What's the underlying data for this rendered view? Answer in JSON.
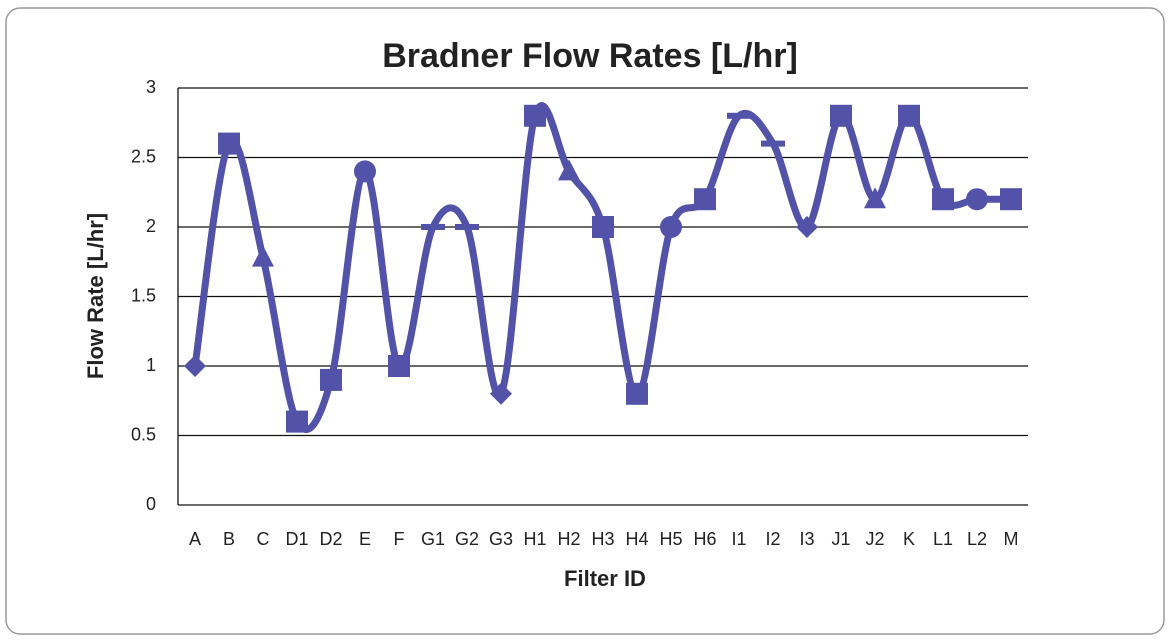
{
  "chart_data": {
    "type": "line",
    "title": "Bradner Flow Rates [L/hr]",
    "x_label": "Filter ID",
    "y_label": "Flow Rate [L/hr]",
    "categories": [
      "A",
      "B",
      "C",
      "D1",
      "D2",
      "E",
      "F",
      "G1",
      "G2",
      "G3",
      "H1",
      "H2",
      "H3",
      "H4",
      "H5",
      "H6",
      "I1",
      "I2",
      "I3",
      "J1",
      "J2",
      "K",
      "L1",
      "L2",
      "M"
    ],
    "series": [
      {
        "name": "Flow Rate",
        "color": "#5252a8",
        "values": [
          1.0,
          2.6,
          1.78,
          0.6,
          0.9,
          2.4,
          1.0,
          2.0,
          2.0,
          0.8,
          2.8,
          2.4,
          2.0,
          0.8,
          2.0,
          2.2,
          2.8,
          2.6,
          2.0,
          2.8,
          2.2,
          2.8,
          2.2,
          2.2,
          2.2
        ],
        "markers": [
          "diamond",
          "square",
          "triangle",
          "square",
          "square",
          "circle",
          "square",
          "dash",
          "dash",
          "diamond",
          "square",
          "triangle",
          "square",
          "square",
          "circle",
          "square",
          "dash",
          "dash",
          "diamond",
          "square",
          "triangle",
          "square",
          "square",
          "circle",
          "square"
        ]
      }
    ],
    "ylim": [
      0,
      3
    ],
    "yticks": [
      0,
      {
        "value": 0.5,
        "label": "0.5"
      },
      1,
      {
        "value": 1.5,
        "label": "1.5"
      },
      2,
      {
        "value": 2.5,
        "label": "2.5"
      },
      3
    ],
    "grid": true,
    "smooth": true
  }
}
